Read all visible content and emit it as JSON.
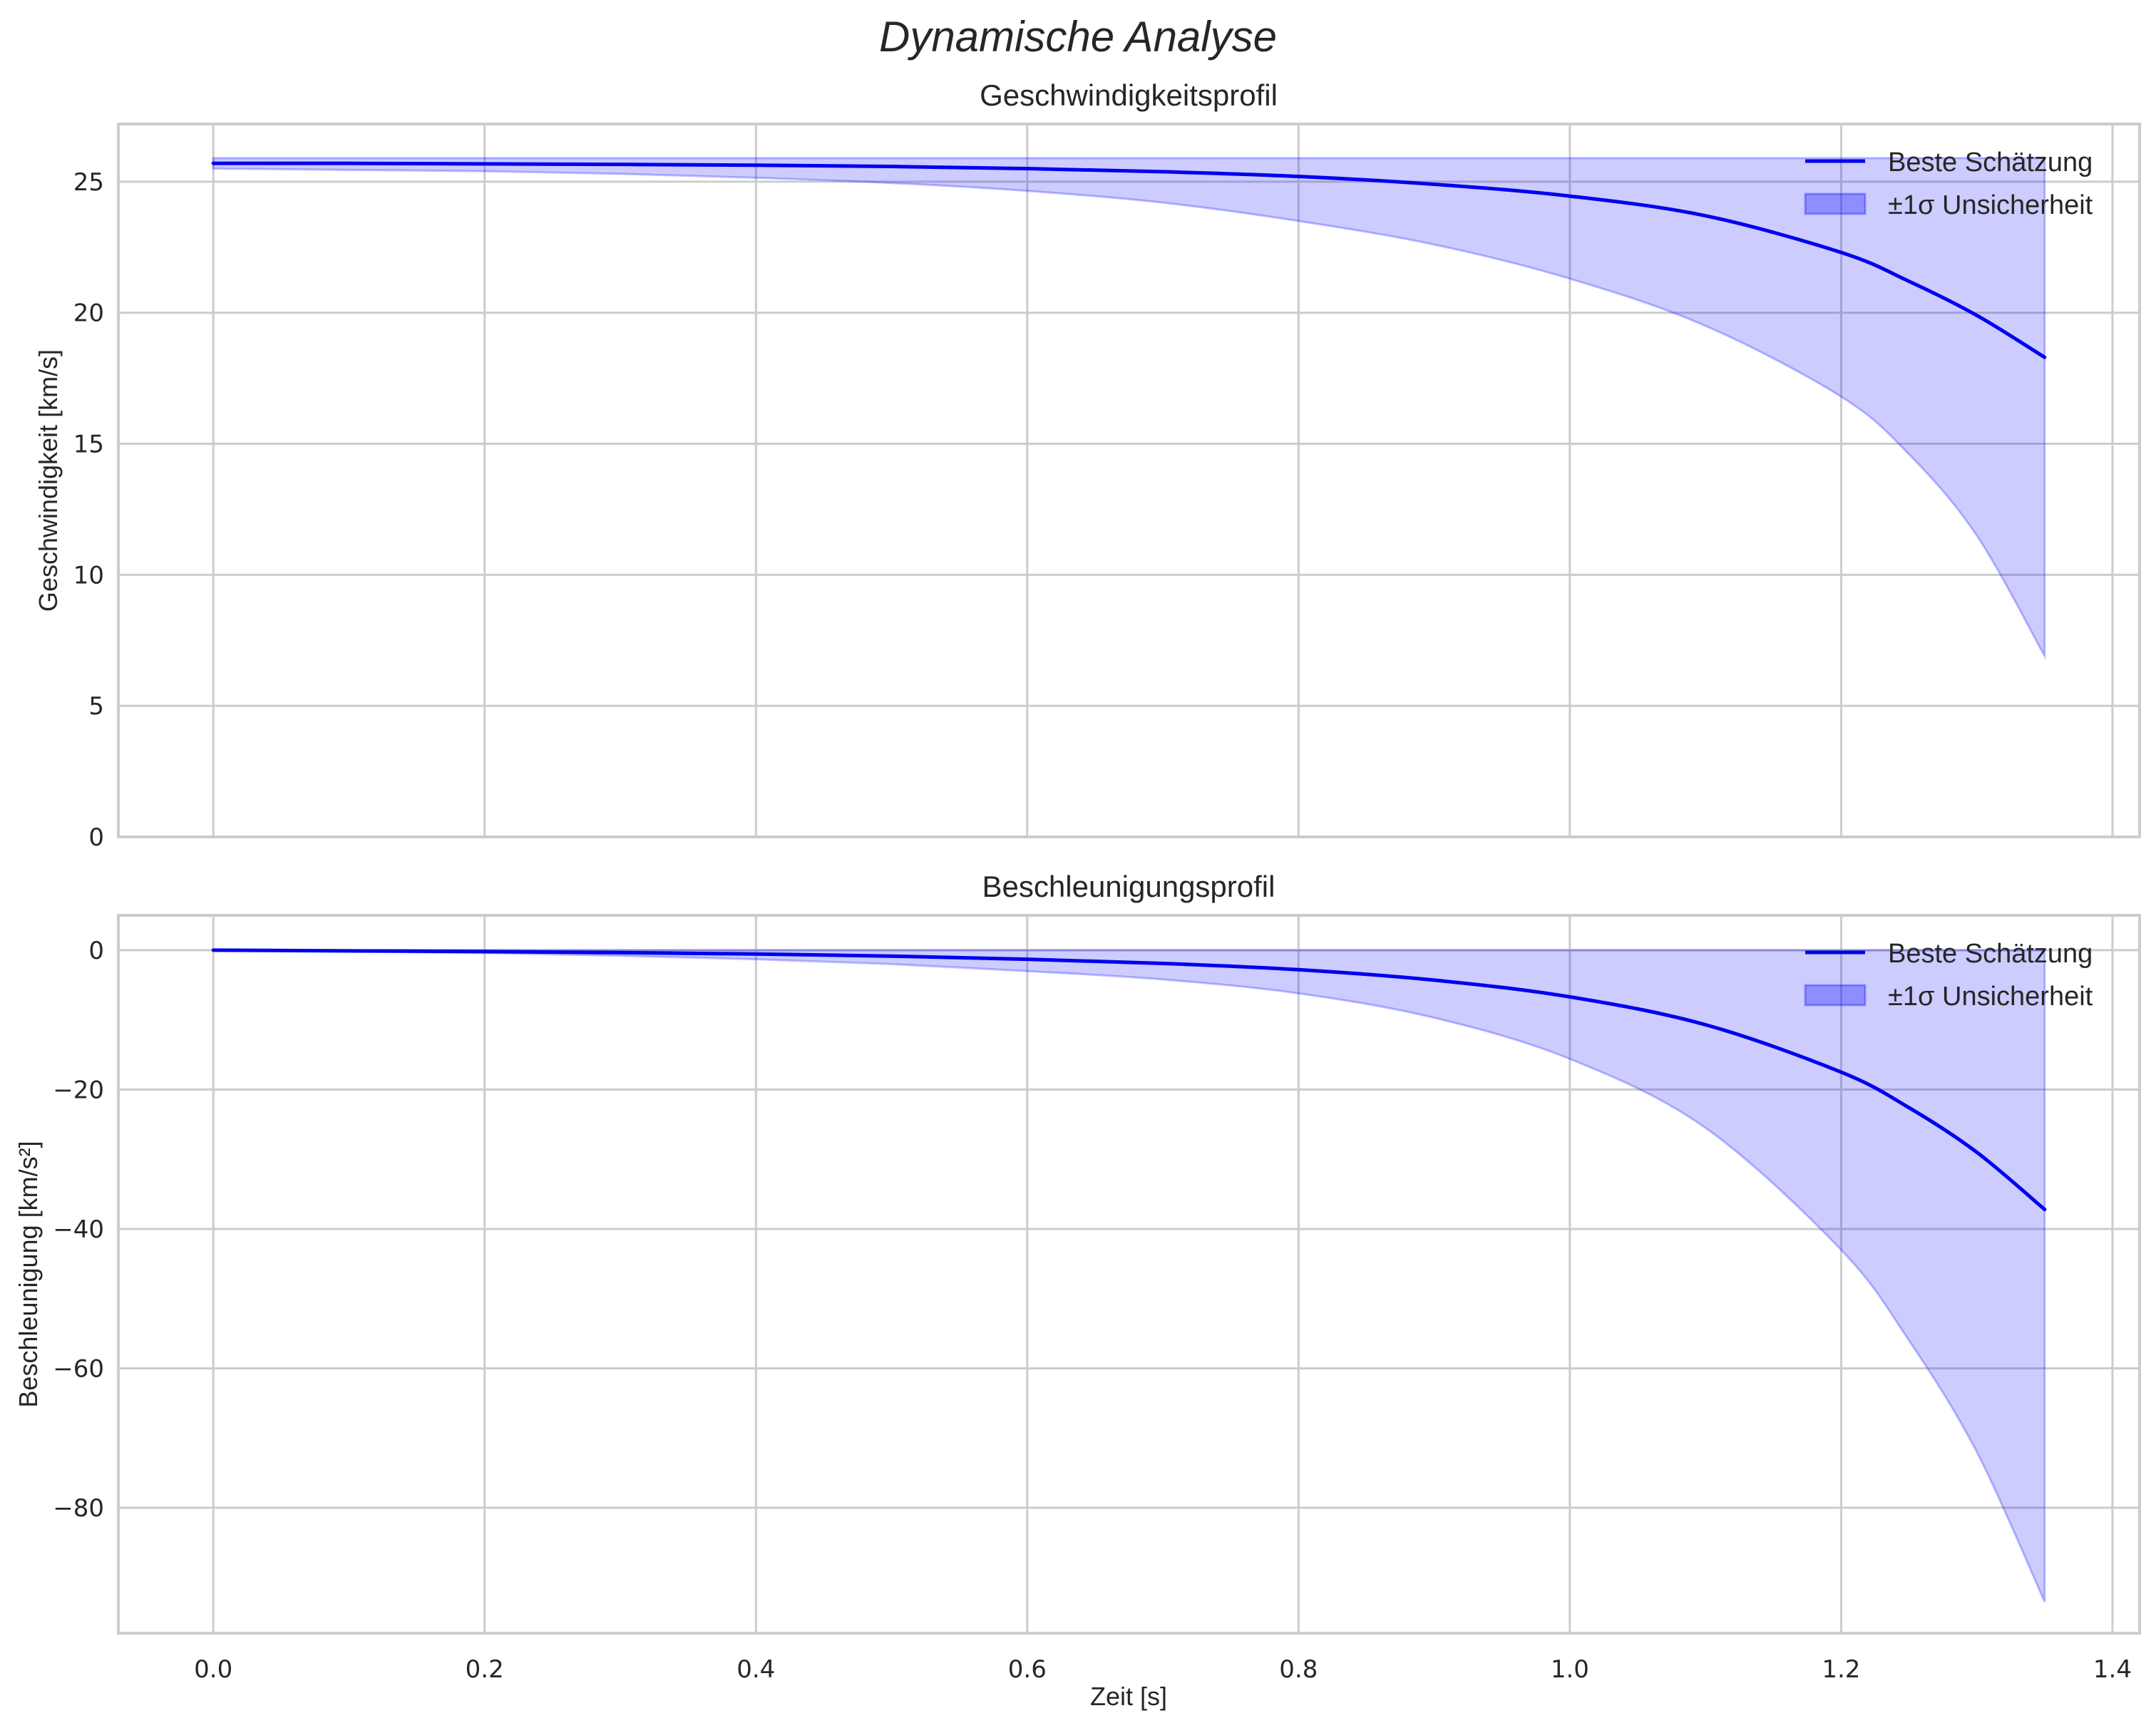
{
  "figure": {
    "suptitle": "Dynamische Analyse",
    "xlabel": "Zeit [s]"
  },
  "colors": {
    "line": "#0000ee",
    "band": "#0000ff",
    "band_alpha": 0.2,
    "grid": "#cccccc",
    "text": "#262626"
  },
  "legend": {
    "items": [
      {
        "label": "Beste Schätzung",
        "type": "line"
      },
      {
        "label": "±1σ Unsicherheit",
        "type": "patch"
      }
    ]
  },
  "chart_data": [
    {
      "type": "line",
      "title": "Geschwindigkeitsprofil",
      "xlabel": "",
      "ylabel": "Geschwindigkeit [km/s]",
      "xlim": [
        -0.07,
        1.42
      ],
      "ylim": [
        0,
        27.2
      ],
      "xticks": [
        "0.0",
        "0.2",
        "0.4",
        "0.6",
        "0.8",
        "1.0",
        "1.2",
        "1.4"
      ],
      "yticks": [
        "0",
        "5",
        "10",
        "15",
        "20",
        "25"
      ],
      "grid": true,
      "legend_position": "upper right",
      "x": [
        0.0,
        0.1,
        0.2,
        0.3,
        0.4,
        0.5,
        0.6,
        0.7,
        0.8,
        0.9,
        1.0,
        1.1,
        1.2,
        1.25,
        1.3,
        1.35
      ],
      "series": [
        {
          "name": "Beste Schätzung",
          "values": [
            25.7,
            25.7,
            25.68,
            25.66,
            25.63,
            25.58,
            25.5,
            25.38,
            25.2,
            24.9,
            24.45,
            23.7,
            22.3,
            21.2,
            19.9,
            18.3
          ]
        },
        {
          "name": "±1σ Unsicherheit (oben)",
          "values": [
            25.9,
            25.9,
            25.9,
            25.9,
            25.9,
            25.9,
            25.9,
            25.9,
            25.9,
            25.9,
            25.9,
            25.9,
            25.9,
            25.9,
            25.9,
            25.9
          ]
        },
        {
          "name": "±1σ Unsicherheit (unten)",
          "values": [
            25.5,
            25.45,
            25.4,
            25.3,
            25.15,
            24.95,
            24.65,
            24.2,
            23.5,
            22.6,
            21.3,
            19.5,
            16.8,
            14.6,
            11.5,
            6.9
          ]
        }
      ]
    },
    {
      "type": "line",
      "title": "Beschleunigungsprofil",
      "xlabel": "Zeit [s]",
      "ylabel": "Beschleunigung [km/s²]",
      "xlim": [
        -0.07,
        1.42
      ],
      "ylim": [
        -98,
        5
      ],
      "xticks": [
        "0.0",
        "0.2",
        "0.4",
        "0.6",
        "0.8",
        "1.0",
        "1.2",
        "1.4"
      ],
      "yticks": [
        "0",
        "−20",
        "−40",
        "−60",
        "−80"
      ],
      "grid": true,
      "legend_position": "upper right",
      "x": [
        0.0,
        0.1,
        0.2,
        0.3,
        0.4,
        0.5,
        0.6,
        0.7,
        0.8,
        0.9,
        1.0,
        1.1,
        1.2,
        1.25,
        1.3,
        1.35
      ],
      "series": [
        {
          "name": "Beste Schätzung",
          "values": [
            0.0,
            -0.1,
            -0.2,
            -0.35,
            -0.55,
            -0.85,
            -1.3,
            -1.9,
            -2.8,
            -4.3,
            -6.7,
            -10.7,
            -17.5,
            -22.6,
            -29.0,
            -37.2
          ]
        },
        {
          "name": "±1σ Unsicherheit (oben)",
          "values": [
            0,
            0,
            0,
            0,
            0,
            0,
            0,
            0,
            0,
            0,
            0,
            0,
            0,
            0,
            0,
            0
          ]
        },
        {
          "name": "±1σ Unsicherheit (unten)",
          "values": [
            0.0,
            -0.2,
            -0.4,
            -0.8,
            -1.3,
            -2.0,
            -3.0,
            -4.2,
            -6.2,
            -9.7,
            -15.6,
            -25.5,
            -43.0,
            -56.0,
            -72.0,
            -93.5
          ]
        }
      ]
    }
  ]
}
